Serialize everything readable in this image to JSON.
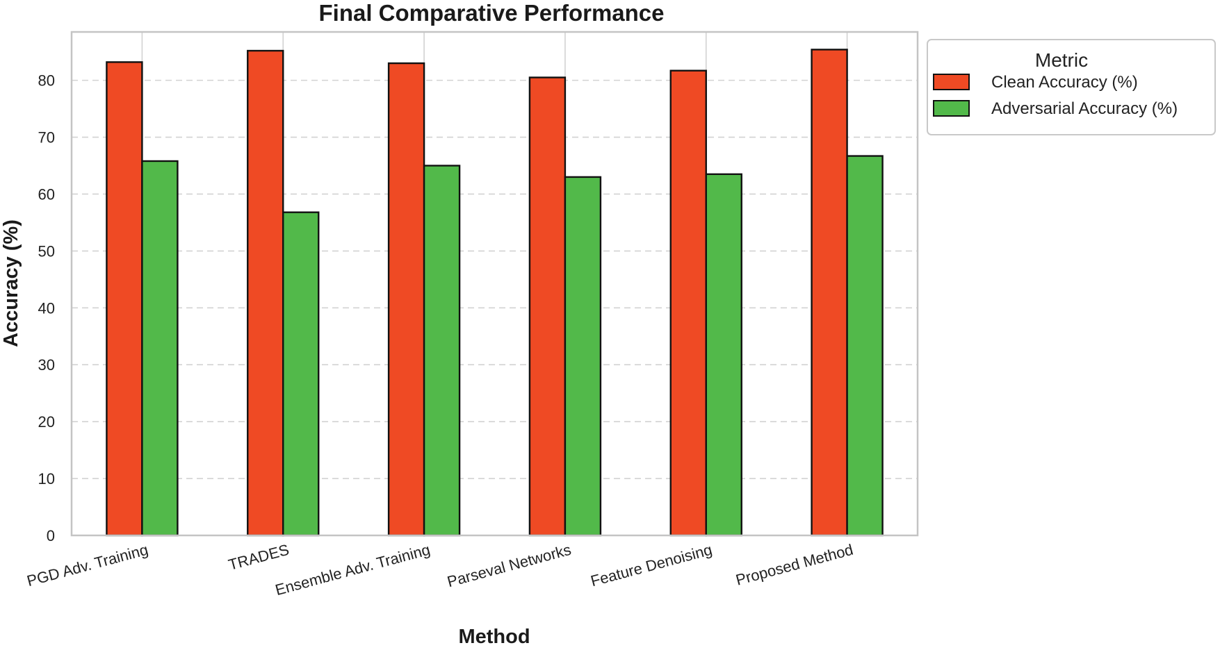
{
  "chart_data": {
    "type": "bar",
    "title": "Final Comparative Performance",
    "xlabel": "Method",
    "ylabel": "Accuracy (%)",
    "categories": [
      "PGD Adv. Training",
      "TRADES",
      "Ensemble Adv. Training",
      "Parseval Networks",
      "Feature Denoising",
      "Proposed Method"
    ],
    "series": [
      {
        "name": "Clean Accuracy (%)",
        "color": "#ef4a24",
        "values": [
          83.2,
          85.2,
          83.0,
          80.5,
          81.7,
          85.4
        ]
      },
      {
        "name": "Adversarial Accuracy (%)",
        "color": "#52b94a",
        "values": [
          65.8,
          56.8,
          65.0,
          63.0,
          63.5,
          66.7
        ]
      }
    ],
    "ylim": [
      0,
      88.5
    ],
    "yticks": [
      0,
      10,
      20,
      30,
      40,
      50,
      60,
      70,
      80
    ],
    "grid": "y-dashed, x-solid",
    "legend": {
      "title": "Metric",
      "placement": "outside-top-right"
    }
  }
}
